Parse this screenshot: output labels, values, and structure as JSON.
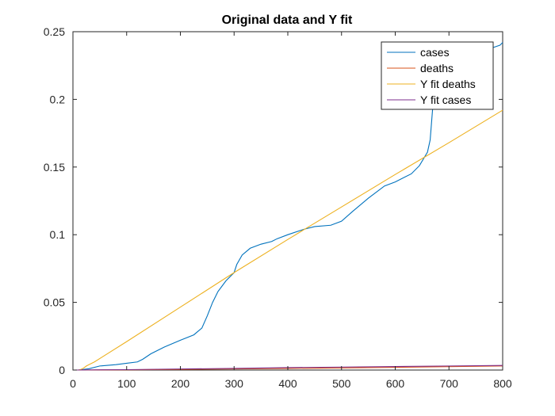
{
  "chart_data": {
    "type": "line",
    "title": "Original data and Y fit",
    "xlabel": "",
    "ylabel": "",
    "xlim": [
      0,
      800
    ],
    "ylim": [
      0,
      0.25
    ],
    "xticks": [
      0,
      100,
      200,
      300,
      400,
      500,
      600,
      700,
      800
    ],
    "yticks": [
      0,
      0.05,
      0.1,
      0.15,
      0.2,
      0.25
    ],
    "xtick_labels": [
      "0",
      "100",
      "200",
      "300",
      "400",
      "500",
      "600",
      "700",
      "800"
    ],
    "ytick_labels": [
      "0",
      "0.05",
      "0.1",
      "0.15",
      "0.2",
      "0.25"
    ],
    "grid": false,
    "legend_position": "top-right",
    "series": [
      {
        "name": "cases",
        "color": "#0072BD",
        "x": [
          10,
          30,
          50,
          80,
          100,
          120,
          130,
          145,
          170,
          200,
          225,
          240,
          250,
          260,
          270,
          285,
          300,
          305,
          315,
          330,
          350,
          370,
          380,
          400,
          430,
          450,
          480,
          500,
          520,
          550,
          580,
          600,
          630,
          645,
          660,
          665,
          670,
          675,
          680,
          700,
          720,
          740,
          780,
          795,
          800
        ],
        "y": [
          0,
          0.001,
          0.003,
          0.004,
          0.005,
          0.006,
          0.008,
          0.012,
          0.017,
          0.022,
          0.026,
          0.031,
          0.04,
          0.05,
          0.058,
          0.066,
          0.072,
          0.078,
          0.085,
          0.09,
          0.093,
          0.095,
          0.097,
          0.1,
          0.104,
          0.106,
          0.107,
          0.11,
          0.117,
          0.127,
          0.136,
          0.139,
          0.145,
          0.151,
          0.161,
          0.17,
          0.195,
          0.212,
          0.22,
          0.225,
          0.23,
          0.234,
          0.238,
          0.24,
          0.242
        ]
      },
      {
        "name": "deaths",
        "color": "#D95319",
        "x": [
          10,
          100,
          200,
          300,
          400,
          500,
          600,
          700,
          800
        ],
        "y": [
          0,
          0.0002,
          0.0005,
          0.0008,
          0.0012,
          0.0016,
          0.002,
          0.0025,
          0.003
        ]
      },
      {
        "name": "Y fit deaths",
        "color": "#EDB120",
        "x": [
          0,
          5,
          10,
          15,
          20,
          25,
          30,
          40,
          60,
          100,
          200,
          300,
          400,
          500,
          600,
          700,
          800
        ],
        "y": [
          0,
          0,
          0,
          0.0005,
          0.0015,
          0.003,
          0.004,
          0.006,
          0.011,
          0.021,
          0.0465,
          0.072,
          0.0965,
          0.1205,
          0.1445,
          0.168,
          0.192
        ]
      },
      {
        "name": "Y fit cases",
        "color": "#7E2F8E",
        "x": [
          0,
          100,
          200,
          300,
          400,
          500,
          600,
          700,
          800
        ],
        "y": [
          0,
          0.0003,
          0.0008,
          0.0012,
          0.0018,
          0.0022,
          0.0026,
          0.003,
          0.0034
        ]
      }
    ]
  }
}
